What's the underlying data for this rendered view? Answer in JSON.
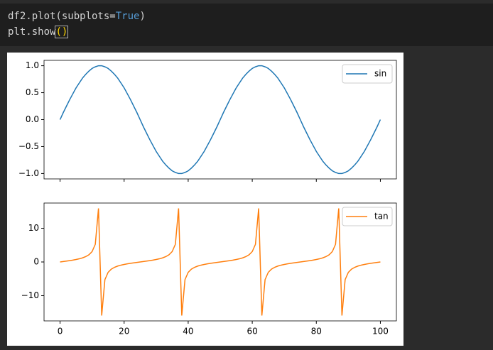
{
  "code": {
    "lines": [
      [
        "df2.plot(subplots=",
        "True",
        ")"
      ],
      [
        "plt.show",
        "()"
      ]
    ]
  },
  "chart_data": [
    {
      "type": "line",
      "x": [
        0,
        1,
        2,
        3,
        4,
        5,
        6,
        7,
        8,
        9,
        10,
        11,
        12,
        13,
        14,
        15,
        16,
        17,
        18,
        19,
        20,
        21,
        22,
        23,
        24,
        25,
        26,
        27,
        28,
        29,
        30,
        31,
        32,
        33,
        34,
        35,
        36,
        37,
        38,
        39,
        40,
        41,
        42,
        43,
        44,
        45,
        46,
        47,
        48,
        49,
        50,
        51,
        52,
        53,
        54,
        55,
        56,
        57,
        58,
        59,
        60,
        61,
        62,
        63,
        64,
        65,
        66,
        67,
        68,
        69,
        70,
        71,
        72,
        73,
        74,
        75,
        76,
        77,
        78,
        79,
        80,
        81,
        82,
        83,
        84,
        85,
        86,
        87,
        88,
        89,
        90,
        91,
        92,
        93,
        94,
        95,
        96,
        97,
        98,
        99,
        100
      ],
      "series": [
        {
          "name": "sin",
          "color": "#1f77b4",
          "values": [
            0,
            0.13,
            0.25,
            0.37,
            0.48,
            0.59,
            0.68,
            0.77,
            0.84,
            0.9,
            0.95,
            0.98,
            1.0,
            1.0,
            0.98,
            0.95,
            0.9,
            0.84,
            0.77,
            0.68,
            0.59,
            0.48,
            0.37,
            0.25,
            0.13,
            0,
            -0.13,
            -0.25,
            -0.37,
            -0.48,
            -0.59,
            -0.68,
            -0.77,
            -0.84,
            -0.9,
            -0.95,
            -0.98,
            -1.0,
            -1.0,
            -0.98,
            -0.95,
            -0.9,
            -0.84,
            -0.77,
            -0.68,
            -0.59,
            -0.48,
            -0.37,
            -0.25,
            -0.13,
            0,
            0.13,
            0.25,
            0.37,
            0.48,
            0.59,
            0.68,
            0.77,
            0.84,
            0.9,
            0.95,
            0.98,
            1.0,
            1.0,
            0.98,
            0.95,
            0.9,
            0.84,
            0.77,
            0.68,
            0.59,
            0.48,
            0.37,
            0.25,
            0.13,
            0,
            -0.13,
            -0.25,
            -0.37,
            -0.48,
            -0.59,
            -0.68,
            -0.77,
            -0.84,
            -0.9,
            -0.95,
            -0.98,
            -1.0,
            -1.0,
            -0.98,
            -0.95,
            -0.9,
            -0.84,
            -0.77,
            -0.68,
            -0.59,
            -0.48,
            -0.37,
            -0.25,
            -0.13,
            0
          ]
        }
      ],
      "xlim": [
        -5,
        105
      ],
      "xticks": [
        0,
        20,
        40,
        60,
        80,
        100
      ],
      "ylim": [
        -1.1,
        1.1
      ],
      "yticks": [
        {
          "value": -1,
          "label": "−1.0"
        },
        {
          "value": -0.5,
          "label": "−0.5"
        },
        {
          "value": 0,
          "label": "0.0"
        },
        {
          "value": 0.5,
          "label": "0.5"
        },
        {
          "value": 1,
          "label": "1.0"
        }
      ],
      "legend": "upper right"
    },
    {
      "type": "line",
      "x": [
        0,
        1,
        2,
        3,
        4,
        5,
        6,
        7,
        8,
        9,
        10,
        11,
        12,
        13,
        14,
        15,
        16,
        17,
        18,
        19,
        20,
        21,
        22,
        23,
        24,
        25,
        26,
        27,
        28,
        29,
        30,
        31,
        32,
        33,
        34,
        35,
        36,
        37,
        38,
        39,
        40,
        41,
        42,
        43,
        44,
        45,
        46,
        47,
        48,
        49,
        50,
        51,
        52,
        53,
        54,
        55,
        56,
        57,
        58,
        59,
        60,
        61,
        62,
        63,
        64,
        65,
        66,
        67,
        68,
        69,
        70,
        71,
        72,
        73,
        74,
        75,
        76,
        77,
        78,
        79,
        80,
        81,
        82,
        83,
        84,
        85,
        86,
        87,
        88,
        89,
        90,
        91,
        92,
        93,
        94,
        95,
        96,
        97,
        98,
        99,
        100
      ],
      "series": [
        {
          "name": "tan",
          "color": "#ff7f0e",
          "values": [
            0,
            0.13,
            0.26,
            0.4,
            0.55,
            0.73,
            0.94,
            1.21,
            1.58,
            2.13,
            3.08,
            5.24,
            15.89,
            -15.89,
            -5.24,
            -3.08,
            -2.13,
            -1.58,
            -1.21,
            -0.94,
            -0.73,
            -0.55,
            -0.4,
            -0.26,
            -0.13,
            0,
            0.13,
            0.26,
            0.4,
            0.55,
            0.73,
            0.94,
            1.21,
            1.58,
            2.13,
            3.08,
            5.24,
            15.89,
            -15.89,
            -5.24,
            -3.08,
            -2.13,
            -1.58,
            -1.21,
            -0.94,
            -0.73,
            -0.55,
            -0.4,
            -0.26,
            -0.13,
            0,
            0.13,
            0.26,
            0.4,
            0.55,
            0.73,
            0.94,
            1.21,
            1.58,
            2.13,
            3.08,
            5.24,
            15.89,
            -15.89,
            -5.24,
            -3.08,
            -2.13,
            -1.58,
            -1.21,
            -0.94,
            -0.73,
            -0.55,
            -0.4,
            -0.26,
            -0.13,
            0,
            0.13,
            0.26,
            0.4,
            0.55,
            0.73,
            0.94,
            1.21,
            1.58,
            2.13,
            3.08,
            5.24,
            15.89,
            -15.89,
            -5.24,
            -3.08,
            -2.13,
            -1.58,
            -1.21,
            -0.94,
            -0.73,
            -0.55,
            -0.4,
            -0.26,
            -0.13,
            0
          ]
        }
      ],
      "xlim": [
        -5,
        105
      ],
      "xticks": [
        0,
        20,
        40,
        60,
        80,
        100
      ],
      "ylim": [
        -17.48,
        17.48
      ],
      "yticks": [
        {
          "value": -10,
          "label": "−10"
        },
        0,
        10
      ],
      "legend": "upper right"
    }
  ]
}
